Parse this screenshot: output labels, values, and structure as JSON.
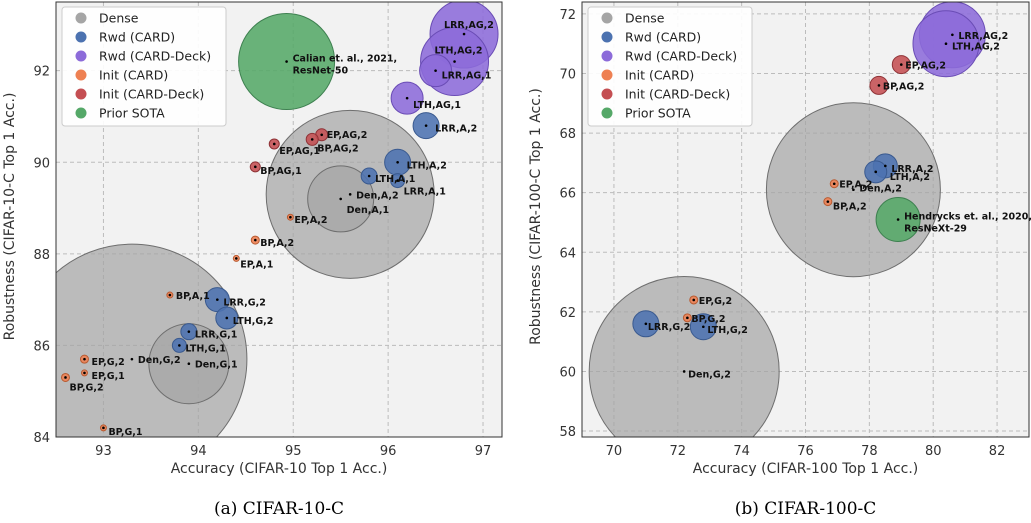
{
  "colors": {
    "Dense": "#a5a5a5",
    "Rwd (CARD)": "#4c72b0",
    "Rwd (CARD-Deck)": "#8c6bd9",
    "Init (CARD)": "#ee8052",
    "Init (CARD-Deck)": "#c44e52",
    "Prior SOTA": "#55a868"
  },
  "chart_data": [
    {
      "type": "scatter",
      "caption": "(a) CIFAR-10-C",
      "xlabel": "Accuracy (CIFAR-10 Top 1 Acc.)",
      "ylabel": "Robustness (CIFAR-10-C Top 1 Acc.)",
      "xlim": [
        92.5,
        97.2
      ],
      "ylim": [
        84,
        93.5
      ],
      "xticks": [
        93,
        94,
        95,
        96,
        97
      ],
      "yticks": [
        84,
        86,
        88,
        90,
        92
      ],
      "grid": true,
      "legend_position": "upper-left",
      "legend": [
        "Dense",
        "Rwd (CARD)",
        "Rwd (CARD-Deck)",
        "Init (CARD)",
        "Init (CARD-Deck)",
        "Prior SOTA"
      ],
      "points": [
        {
          "label": "Den,G,2",
          "x": 93.3,
          "y": 85.7,
          "group": "Dense",
          "size": 115,
          "lx": 6,
          "ly": 4
        },
        {
          "label": "Den,G,1",
          "x": 93.9,
          "y": 85.6,
          "group": "Dense",
          "size": 40,
          "lx": 6,
          "ly": 4
        },
        {
          "label": "Den,A,2",
          "x": 95.6,
          "y": 89.3,
          "group": "Dense",
          "size": 84,
          "lx": 6,
          "ly": 4
        },
        {
          "label": "Den,A,1",
          "x": 95.5,
          "y": 89.2,
          "group": "Dense",
          "size": 33,
          "lx": 6,
          "ly": 14
        },
        {
          "label": "Calian et. al., 2021,",
          "label2": "ResNet-50",
          "x": 94.93,
          "y": 92.2,
          "group": "Prior SOTA",
          "size": 48,
          "lx": 6,
          "ly": 0
        },
        {
          "label": "LRR,G,2",
          "x": 94.2,
          "y": 87.0,
          "group": "Rwd (CARD)",
          "size": 12,
          "lx": 6,
          "ly": 6
        },
        {
          "label": "LTH,G,2",
          "x": 94.3,
          "y": 86.6,
          "group": "Rwd (CARD)",
          "size": 11,
          "lx": 6,
          "ly": 6
        },
        {
          "label": "LRR,G,1",
          "x": 93.9,
          "y": 86.3,
          "group": "Rwd (CARD)",
          "size": 8,
          "lx": 6,
          "ly": 6
        },
        {
          "label": "LTH,G,1",
          "x": 93.8,
          "y": 86.0,
          "group": "Rwd (CARD)",
          "size": 7,
          "lx": 6,
          "ly": 6
        },
        {
          "label": "LTH,A,2",
          "x": 96.1,
          "y": 90.0,
          "group": "Rwd (CARD)",
          "size": 13,
          "lx": 9,
          "ly": 6
        },
        {
          "label": "LTH,A,1",
          "x": 95.8,
          "y": 89.7,
          "group": "Rwd (CARD)",
          "size": 8,
          "lx": 6,
          "ly": 6
        },
        {
          "label": "LRR,A,1",
          "x": 96.1,
          "y": 89.6,
          "group": "Rwd (CARD)",
          "size": 7,
          "lx": 6,
          "ly": 14
        },
        {
          "label": "LRR,A,2",
          "x": 96.4,
          "y": 90.8,
          "group": "Rwd (CARD)",
          "size": 13,
          "lx": 9,
          "ly": 6
        },
        {
          "label": "LRR,AG,2",
          "x": 96.8,
          "y": 92.8,
          "group": "Rwd (CARD-Deck)",
          "size": 34,
          "lx": -20,
          "ly": -6
        },
        {
          "label": "LTH,AG,2",
          "x": 96.7,
          "y": 92.2,
          "group": "Rwd (CARD-Deck)",
          "size": 34,
          "lx": -20,
          "ly": -8
        },
        {
          "label": "LRR,AG,1",
          "x": 96.5,
          "y": 92.0,
          "group": "Rwd (CARD-Deck)",
          "size": 16,
          "lx": 6,
          "ly": 8
        },
        {
          "label": "LTH,AG,1",
          "x": 96.2,
          "y": 91.4,
          "group": "Rwd (CARD-Deck)",
          "size": 16,
          "lx": 6,
          "ly": 10
        },
        {
          "label": "EP,AG,1",
          "x": 94.8,
          "y": 90.4,
          "group": "Init (CARD-Deck)",
          "size": 5,
          "lx": 5,
          "ly": 10
        },
        {
          "label": "EP,AG,2",
          "x": 95.3,
          "y": 90.6,
          "group": "Init (CARD-Deck)",
          "size": 6,
          "lx": 5,
          "ly": 3
        },
        {
          "label": "BP,AG,2",
          "x": 95.2,
          "y": 90.5,
          "group": "Init (CARD-Deck)",
          "size": 6,
          "lx": 5,
          "ly": 12
        },
        {
          "label": "BP,AG,1",
          "x": 94.6,
          "y": 89.9,
          "group": "Init (CARD-Deck)",
          "size": 5,
          "lx": 5,
          "ly": 7
        },
        {
          "label": "EP,A,2",
          "x": 94.97,
          "y": 88.8,
          "group": "Init (CARD)",
          "size": 3,
          "lx": 4,
          "ly": 6
        },
        {
          "label": "BP,A,2",
          "x": 94.6,
          "y": 88.3,
          "group": "Init (CARD)",
          "size": 4,
          "lx": 5,
          "ly": 6
        },
        {
          "label": "EP,A,1",
          "x": 94.4,
          "y": 87.9,
          "group": "Init (CARD)",
          "size": 3,
          "lx": 4,
          "ly": 9
        },
        {
          "label": "BP,A,1",
          "x": 93.7,
          "y": 87.1,
          "group": "Init (CARD)",
          "size": 3,
          "lx": 6,
          "ly": 4
        },
        {
          "label": "EP,G,2",
          "x": 92.8,
          "y": 85.7,
          "group": "Init (CARD)",
          "size": 4,
          "lx": 7,
          "ly": 6
        },
        {
          "label": "EP,G,1",
          "x": 92.8,
          "y": 85.4,
          "group": "Init (CARD)",
          "size": 3,
          "lx": 7,
          "ly": 6
        },
        {
          "label": "BP,G,2",
          "x": 92.6,
          "y": 85.3,
          "group": "Init (CARD)",
          "size": 4,
          "lx": 4,
          "ly": 13
        },
        {
          "label": "BP,G,1",
          "x": 93.0,
          "y": 84.2,
          "group": "Init (CARD)",
          "size": 3,
          "lx": 5,
          "ly": 7
        }
      ]
    },
    {
      "type": "scatter",
      "caption": "(b) CIFAR-100-C",
      "xlabel": "Accuracy (CIFAR-100 Top 1 Acc.)",
      "ylabel": "Robustness (CIFAR-100-C Top 1 Acc.)",
      "xlim": [
        69,
        83
      ],
      "ylim": [
        57.8,
        72.4
      ],
      "xticks": [
        70,
        72,
        74,
        76,
        78,
        80,
        82
      ],
      "yticks": [
        58,
        60,
        62,
        64,
        66,
        68,
        70,
        72
      ],
      "grid": true,
      "legend_position": "upper-left",
      "legend": [
        "Dense",
        "Rwd (CARD)",
        "Rwd (CARD-Deck)",
        "Init (CARD)",
        "Init (CARD-Deck)",
        "Prior SOTA"
      ],
      "points": [
        {
          "label": "Den,G,2",
          "x": 72.2,
          "y": 60.0,
          "group": "Dense",
          "size": 95,
          "lx": 4,
          "ly": 6
        },
        {
          "label": "Den,A,2",
          "x": 77.5,
          "y": 66.1,
          "group": "Dense",
          "size": 87,
          "lx": 6,
          "ly": 2
        },
        {
          "label": "LRR,A,2",
          "x": 78.5,
          "y": 66.9,
          "group": "Rwd (CARD)",
          "size": 12,
          "lx": 6,
          "ly": 6
        },
        {
          "label": "LTH,A,2",
          "x": 78.2,
          "y": 66.7,
          "group": "Rwd (CARD)",
          "size": 11,
          "lx": 14,
          "ly": 8
        },
        {
          "label": "LRR,G,2",
          "x": 71.0,
          "y": 61.6,
          "group": "Rwd (CARD)",
          "size": 13,
          "lx": 2,
          "ly": 6
        },
        {
          "label": "LTH,G,2",
          "x": 72.8,
          "y": 61.5,
          "group": "Rwd (CARD)",
          "size": 13,
          "lx": 4,
          "ly": 6
        },
        {
          "label": "LRR,AG,2",
          "x": 80.6,
          "y": 71.3,
          "group": "Rwd (CARD-Deck)",
          "size": 33,
          "lx": 6,
          "ly": 4
        },
        {
          "label": "LTH,AG,2",
          "x": 80.4,
          "y": 71.0,
          "group": "Rwd (CARD-Deck)",
          "size": 33,
          "lx": 6,
          "ly": 6
        },
        {
          "label": "EP,AG,2",
          "x": 79.0,
          "y": 70.3,
          "group": "Init (CARD-Deck)",
          "size": 9,
          "lx": 4,
          "ly": 4
        },
        {
          "label": "BP,AG,2",
          "x": 78.3,
          "y": 69.6,
          "group": "Init (CARD-Deck)",
          "size": 9,
          "lx": 4,
          "ly": 4
        },
        {
          "label": "EP,A,2",
          "x": 76.9,
          "y": 66.3,
          "group": "Init (CARD)",
          "size": 4,
          "lx": 5,
          "ly": 4
        },
        {
          "label": "BP,A,2",
          "x": 76.7,
          "y": 65.7,
          "group": "Init (CARD)",
          "size": 4,
          "lx": 5,
          "ly": 8
        },
        {
          "label": "EP,G,2",
          "x": 72.5,
          "y": 62.4,
          "group": "Init (CARD)",
          "size": 4,
          "lx": 5,
          "ly": 4
        },
        {
          "label": "BP,G,2",
          "x": 72.3,
          "y": 61.8,
          "group": "Init (CARD)",
          "size": 4,
          "lx": 4,
          "ly": 4
        },
        {
          "label": "Hendrycks et. al., 2020,",
          "label2": "ResNeXt-29",
          "x": 78.9,
          "y": 65.1,
          "group": "Prior SOTA",
          "size": 22,
          "lx": 6,
          "ly": 0
        }
      ]
    }
  ]
}
